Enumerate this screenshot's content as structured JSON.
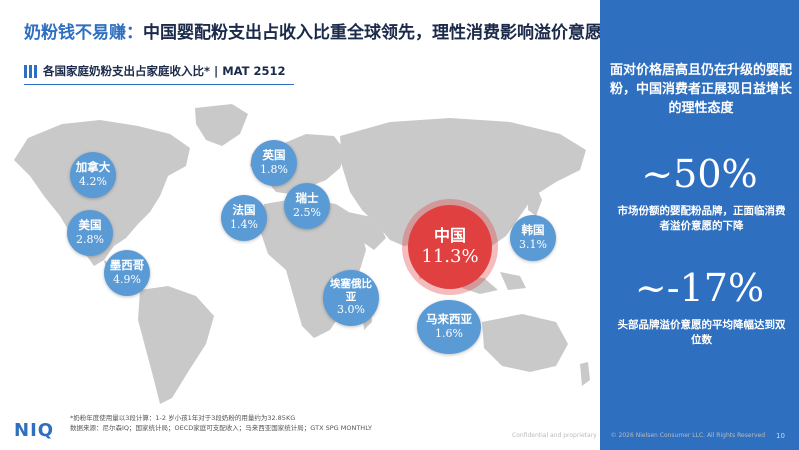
{
  "title": {
    "highlight": "奶粉钱不易赚：",
    "rest": "中国婴配粉支出占收入比重全球领先，理性消费影响溢价意愿"
  },
  "subtitle": "各国家庭奶粉支出占家庭收入比* | MAT 2512",
  "countries": [
    {
      "name": "加拿大",
      "value": "4.2%"
    },
    {
      "name": "美国",
      "value": "2.8%"
    },
    {
      "name": "墨西哥",
      "value": "4.9%"
    },
    {
      "name": "英国",
      "value": "1.8%"
    },
    {
      "name": "法国",
      "value": "1.4%"
    },
    {
      "name": "瑞士",
      "value": "2.5%"
    },
    {
      "name": "中国",
      "value": "11.3%"
    },
    {
      "name": "韩国",
      "value": "3.1%"
    },
    {
      "name": "埃塞俄比亚",
      "value": "3.0%"
    },
    {
      "name": "马来西亚",
      "value": "1.6%"
    }
  ],
  "panel": {
    "intro": "面对价格居高且仍在升级的婴配粉，中国消费者正展现日益增长的理性态度",
    "stat1": {
      "value": "~50%",
      "desc": "市场份额的婴配粉品牌，正面临消费者溢价意愿的下降"
    },
    "stat2": {
      "value": "~-17%",
      "desc": "头部品牌溢价意愿的平均降幅达到双位数"
    }
  },
  "footer": {
    "logo": "NIQ",
    "note1": "*奶粉年度使用量以3段计算：1-2 岁小孩1年对于3段奶粉的用量约为32.85KG",
    "note2": "数据来源：尼尔森IQ；国家统计局；OECD家庭可支配收入；马来西亚国家统计局；GTX SPG MONTHLY",
    "confidential": "Confidential and proprietary",
    "copyright": "© 2026 Nielsen Consumer LLC. All Rights Reserved",
    "page_number": "10"
  },
  "colors": {
    "accent": "#2e6fc0",
    "bubble": "#5b9bd5",
    "highlight_bubble": "#e04040",
    "map_land": "#c9c9c9"
  }
}
